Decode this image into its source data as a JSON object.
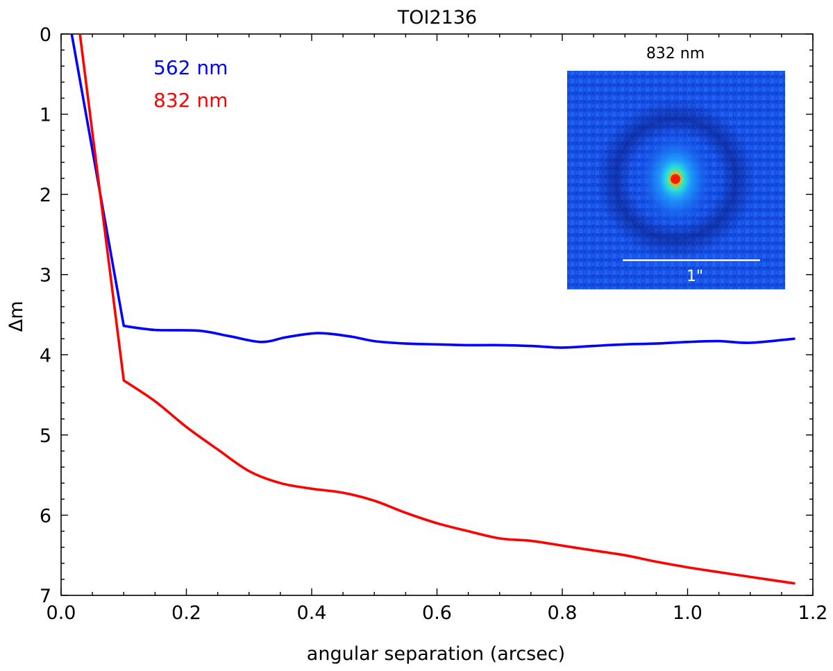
{
  "chart_data": {
    "type": "line",
    "title": "TOI2136",
    "xlabel": "angular separation (arcsec)",
    "ylabel": "Δm",
    "xlim": [
      0.0,
      1.2
    ],
    "ylim": [
      0,
      7
    ],
    "y_inverted": true,
    "x_ticks": [
      0.0,
      0.2,
      0.4,
      0.6,
      0.8,
      1.0,
      1.2
    ],
    "x_tick_labels": [
      "0.0",
      "0.2",
      "0.4",
      "0.6",
      "0.8",
      "1.0",
      "1.2"
    ],
    "y_ticks": [
      0,
      1,
      2,
      3,
      4,
      5,
      6,
      7
    ],
    "y_tick_labels": [
      "0",
      "1",
      "2",
      "3",
      "4",
      "5",
      "6",
      "7"
    ],
    "grid": false,
    "legend_position": "top-left",
    "series": [
      {
        "name": "562 nm",
        "color": "#0000ff",
        "x": [
          0.017,
          0.1,
          0.15,
          0.22,
          0.27,
          0.32,
          0.36,
          0.41,
          0.46,
          0.5,
          0.55,
          0.6,
          0.65,
          0.7,
          0.75,
          0.8,
          0.85,
          0.9,
          0.95,
          1.0,
          1.05,
          1.1,
          1.17
        ],
        "y": [
          0.0,
          3.64,
          3.69,
          3.7,
          3.77,
          3.84,
          3.78,
          3.73,
          3.77,
          3.83,
          3.86,
          3.87,
          3.88,
          3.88,
          3.89,
          3.91,
          3.89,
          3.87,
          3.86,
          3.84,
          3.83,
          3.85,
          3.8
        ]
      },
      {
        "name": "832 nm",
        "color": "#ff0000",
        "x": [
          0.03,
          0.1,
          0.15,
          0.2,
          0.25,
          0.3,
          0.35,
          0.4,
          0.45,
          0.5,
          0.55,
          0.6,
          0.65,
          0.7,
          0.75,
          0.8,
          0.85,
          0.9,
          0.95,
          1.0,
          1.05,
          1.1,
          1.17
        ],
        "y": [
          0.0,
          4.32,
          4.58,
          4.9,
          5.18,
          5.45,
          5.6,
          5.67,
          5.72,
          5.82,
          5.97,
          6.1,
          6.2,
          6.29,
          6.32,
          6.38,
          6.44,
          6.5,
          6.58,
          6.65,
          6.71,
          6.77,
          6.85
        ]
      }
    ],
    "inset": {
      "title": "832 nm",
      "scale_bar_label": "1\"",
      "colormap": "jet",
      "background_color": "#1450e6"
    }
  }
}
